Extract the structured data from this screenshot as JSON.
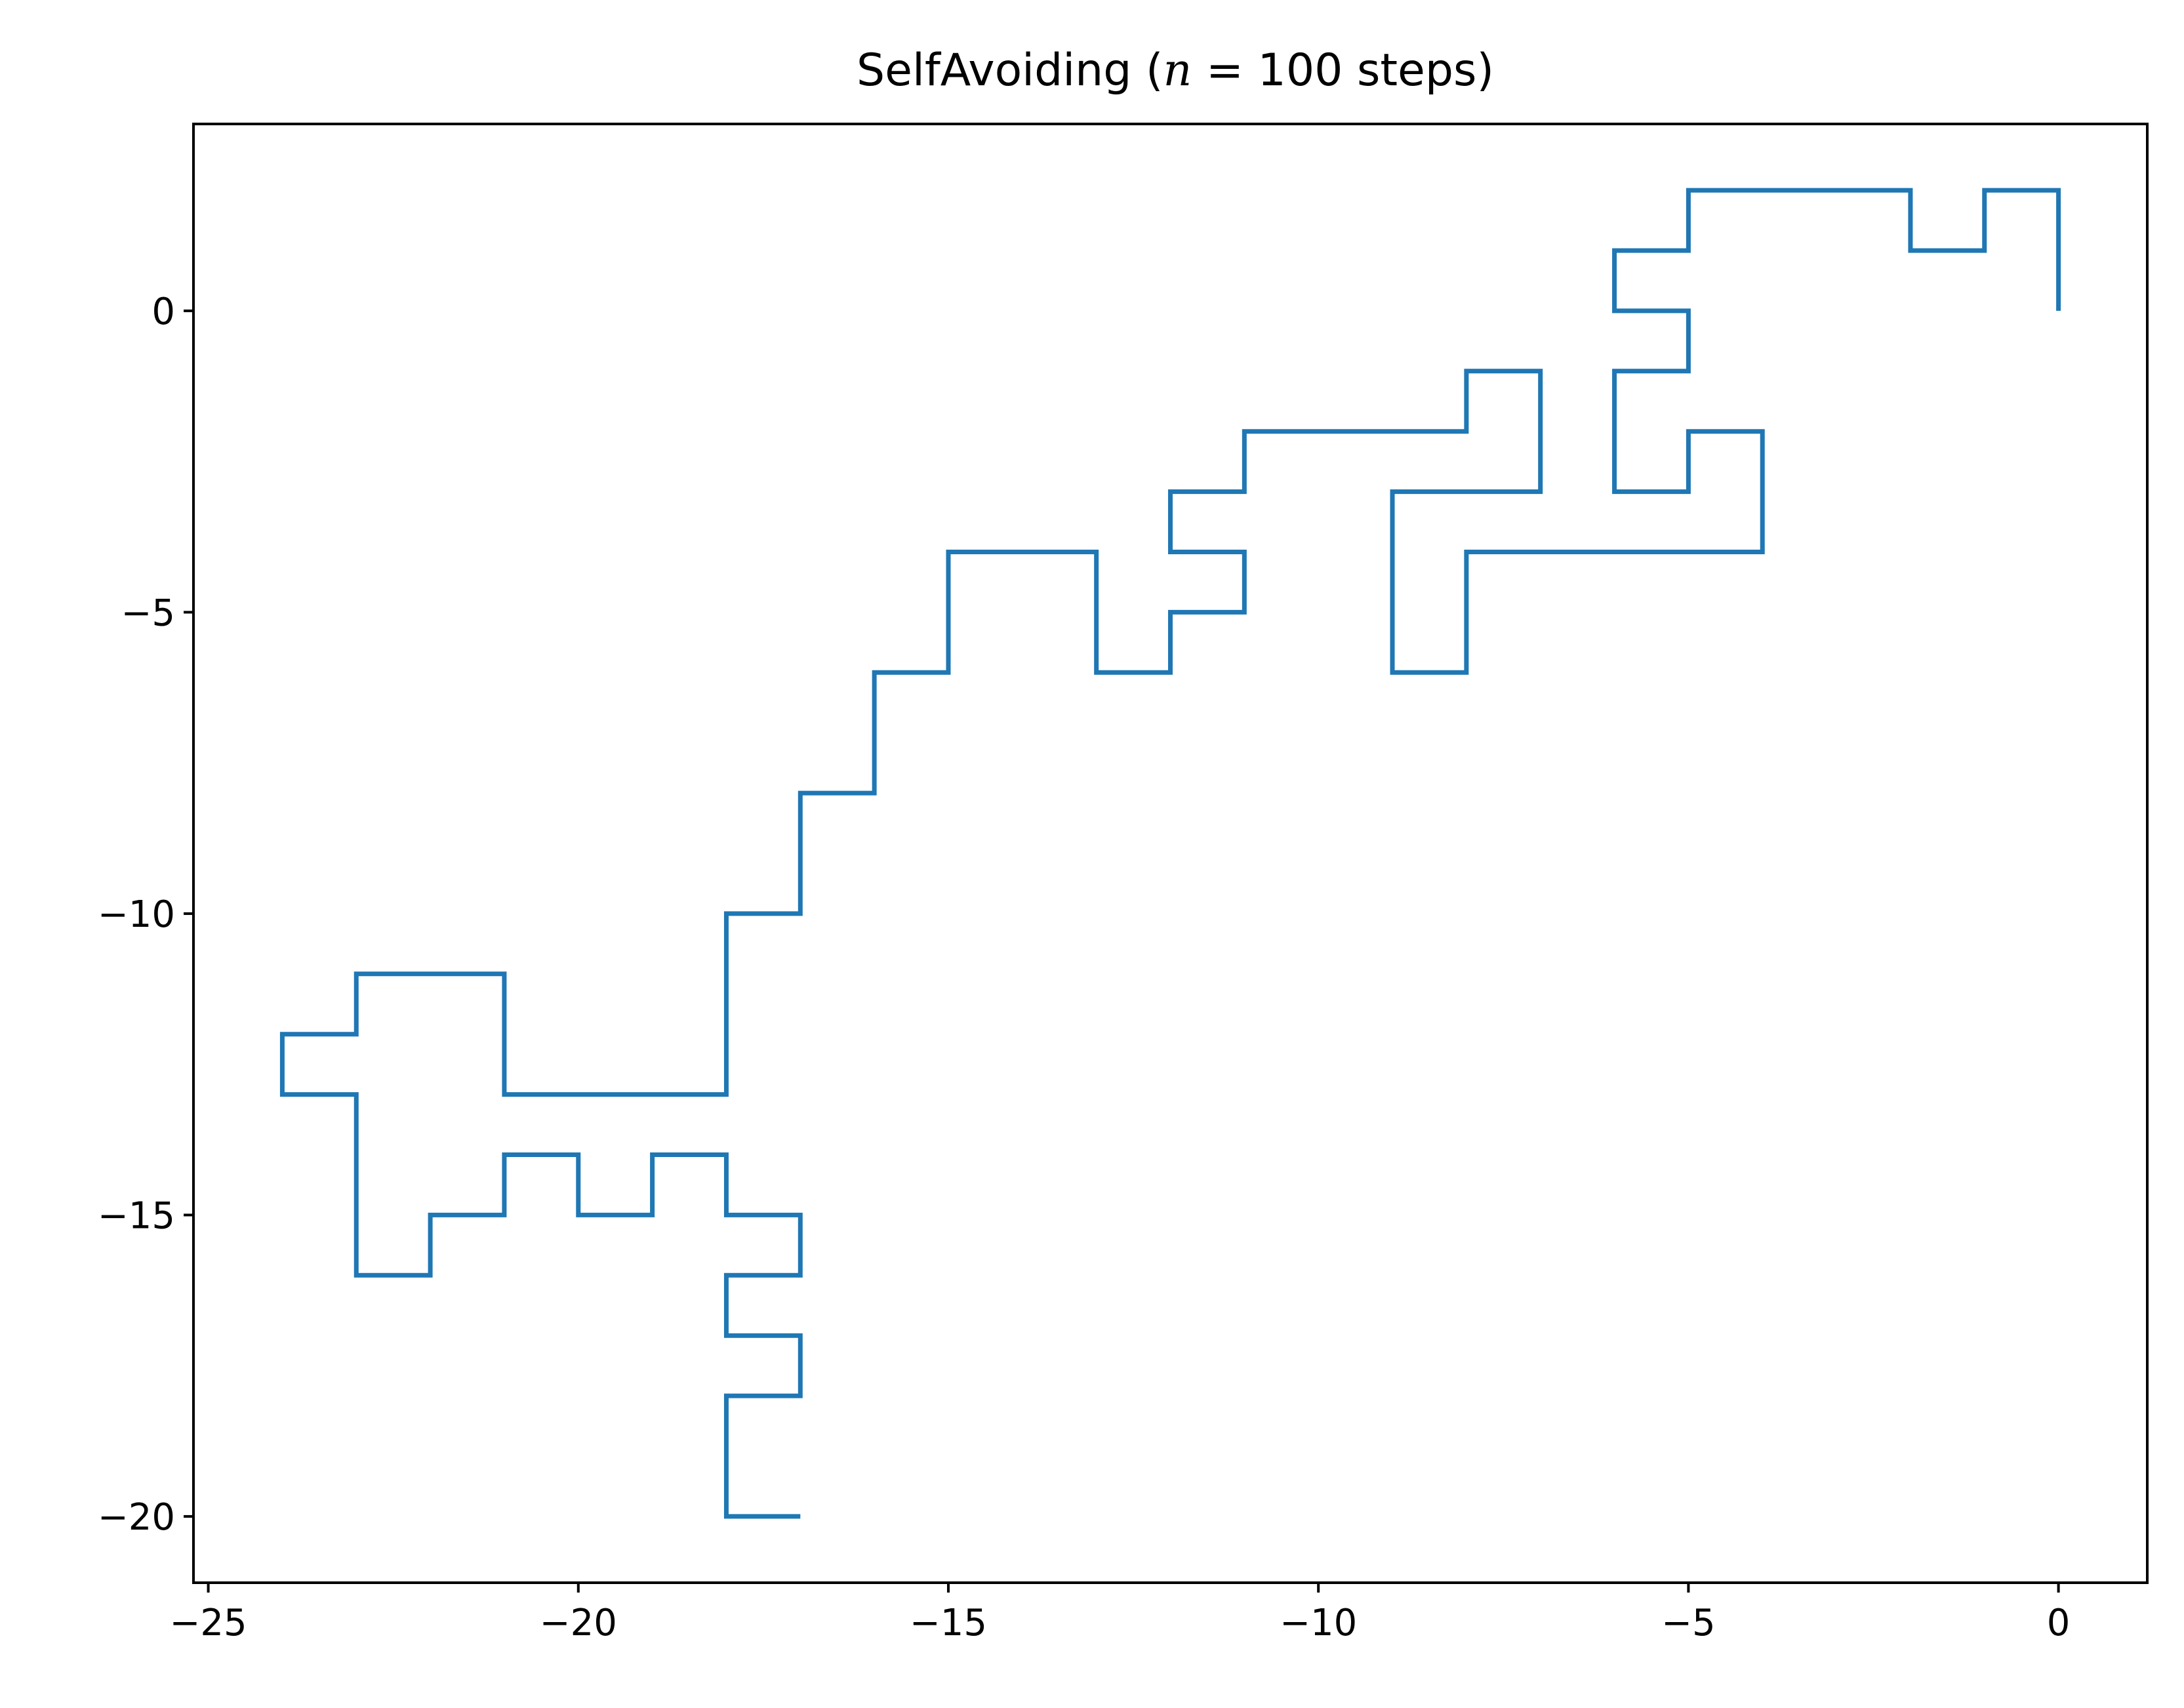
{
  "chart_data": {
    "type": "line",
    "title": {
      "prefix": "SelfAvoiding (",
      "variable": "n",
      "suffix": " = 100 steps)"
    },
    "xlabel": "",
    "ylabel": "",
    "xlim": [
      -25.2,
      1.2
    ],
    "ylim": [
      -21.1,
      3.1
    ],
    "xticks": [
      -25,
      -20,
      -15,
      -10,
      -5,
      0
    ],
    "yticks": [
      0,
      -5,
      -10,
      -15,
      -20
    ],
    "grid": false,
    "series": [
      {
        "color": "#1f77b4",
        "x": [
          0,
          0,
          -1,
          -1,
          -2,
          -2,
          -5,
          -5,
          -6,
          -6,
          -5,
          -5,
          -6,
          -6,
          -5,
          -5,
          -4,
          -4,
          -8,
          -8,
          -9,
          -9,
          -7,
          -7,
          -8,
          -8,
          -11,
          -11,
          -12,
          -12,
          -11,
          -11,
          -12,
          -12,
          -13,
          -13,
          -15,
          -15,
          -16,
          -16,
          -17,
          -17,
          -18,
          -18,
          -21,
          -21,
          -23,
          -23,
          -24,
          -24,
          -23,
          -23,
          -22,
          -22,
          -21,
          -21,
          -20,
          -20,
          -19,
          -19,
          -18,
          -18,
          -17,
          -17,
          -18,
          -18,
          -17,
          -17,
          -18,
          -18,
          -17
        ],
        "y": [
          0,
          2,
          2,
          1,
          1,
          2,
          2,
          1,
          1,
          0,
          0,
          -1,
          -1,
          -3,
          -3,
          -2,
          -2,
          -4,
          -4,
          -6,
          -6,
          -3,
          -3,
          -1,
          -1,
          -2,
          -2,
          -3,
          -3,
          -4,
          -4,
          -5,
          -5,
          -6,
          -6,
          -4,
          -4,
          -6,
          -6,
          -8,
          -8,
          -10,
          -10,
          -13,
          -13,
          -11,
          -11,
          -12,
          -12,
          -13,
          -13,
          -16,
          -16,
          -15,
          -15,
          -14,
          -14,
          -15,
          -15,
          -14,
          -14,
          -15,
          -15,
          -16,
          -16,
          -17,
          -17,
          -18,
          -18,
          -20,
          -20
        ]
      }
    ]
  }
}
